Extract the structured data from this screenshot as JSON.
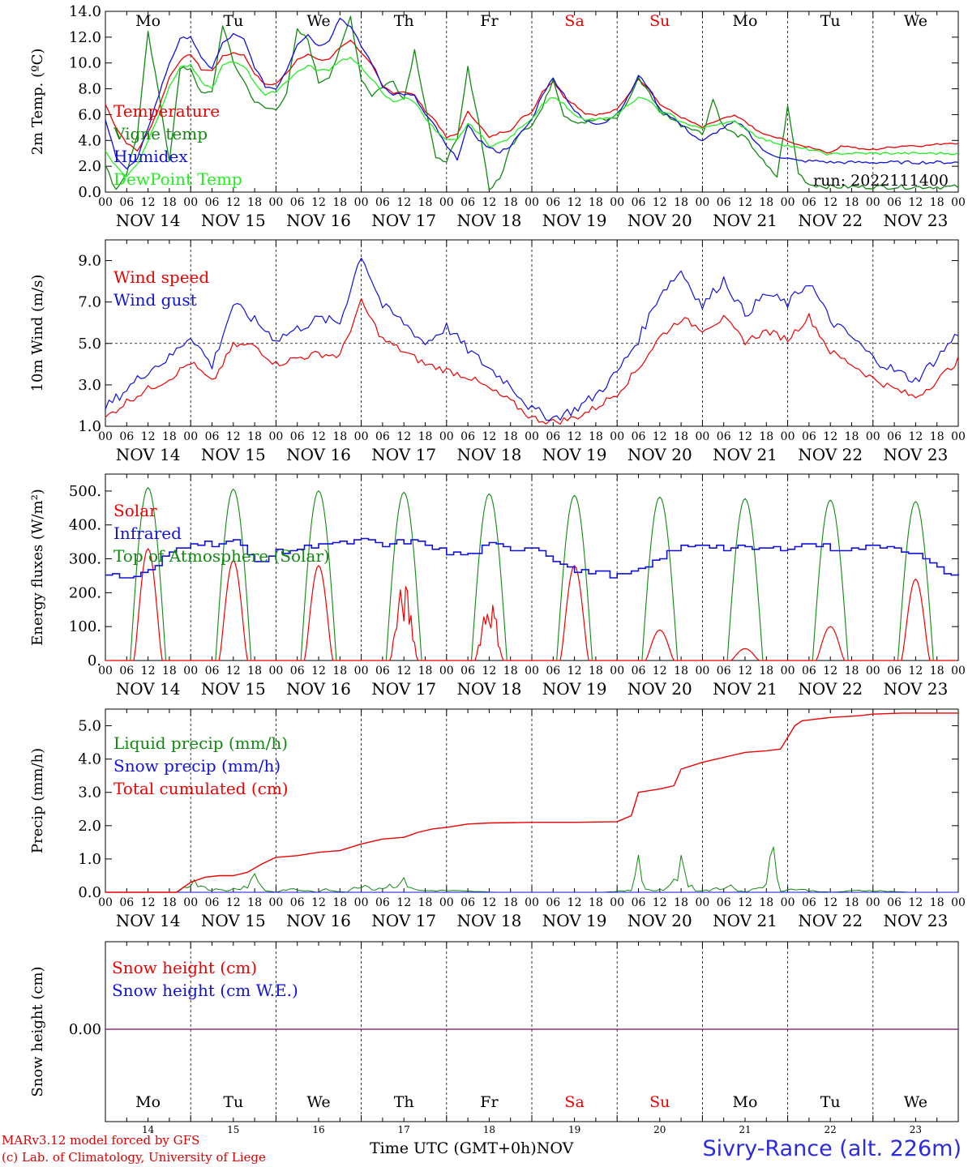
{
  "footer": {
    "model_line": "MARv3.12 model forced by GFS",
    "credit_line": "(c) Lab. of Climatology, University of Liege",
    "x_axis_title": "Time UTC (GMT+0h)",
    "month": "NOV",
    "station": "Sivry-Rance (alt. 226m)"
  },
  "chart_data": [
    {
      "type": "line",
      "ylabel": "2m Temp. (ºC)",
      "ylim": [
        0,
        14
      ],
      "yticks": [
        "0.0",
        "2.0",
        "4.0",
        "6.0",
        "8.0",
        "10.0",
        "12.0",
        "14.0"
      ],
      "run_label": "run: 2022111400",
      "weekday_labels": [
        "Mo",
        "Tu",
        "We",
        "Th",
        "Fr",
        "Sa",
        "Su",
        "Mo",
        "Tu",
        "We"
      ],
      "date_labels": [
        "NOV 14",
        "NOV 15",
        "NOV 16",
        "NOV 17",
        "NOV 18",
        "NOV 19",
        "NOV 20",
        "NOV 21",
        "NOV 22",
        "NOV 23"
      ],
      "hour_ticks": [
        "00",
        "06",
        "12",
        "18"
      ],
      "x": [
        0,
        3,
        6,
        9,
        12,
        15,
        18,
        21,
        24,
        27,
        30,
        33,
        36,
        39,
        42,
        45,
        48,
        51,
        54,
        57,
        60,
        63,
        66,
        69,
        72,
        75,
        78,
        81,
        84,
        87,
        90,
        93,
        96,
        99,
        102,
        105,
        108,
        111,
        114,
        117,
        120,
        123,
        126,
        129,
        132,
        135,
        138,
        141,
        144,
        147,
        150,
        153,
        156,
        159,
        162,
        165,
        168,
        171,
        174,
        177,
        180,
        183,
        186,
        189,
        192,
        195,
        198,
        201,
        204,
        207,
        210,
        213,
        216,
        219,
        222,
        225,
        228,
        231,
        234,
        237,
        240
      ],
      "series": [
        {
          "name": "Temperature",
          "color": "#ee0000",
          "values": [
            6.8,
            5.0,
            3.8,
            3.2,
            4.6,
            6.5,
            8.9,
            10.2,
            10.7,
            9.5,
            9.4,
            10.5,
            10.8,
            10.6,
            9.2,
            8.3,
            8.4,
            9.2,
            10.3,
            10.7,
            10.2,
            10.3,
            11.2,
            11.8,
            10.8,
            9.8,
            8.2,
            7.7,
            7.8,
            7.5,
            6.3,
            5.5,
            4.2,
            4.5,
            6.2,
            5.3,
            4.2,
            4.6,
            4.8,
            5.7,
            6.2,
            7.8,
            8.6,
            7.4,
            6.8,
            6.1,
            6.0,
            6.1,
            6.4,
            7.5,
            8.8,
            8.0,
            6.8,
            6.3,
            5.8,
            5.4,
            5.0,
            5.4,
            5.7,
            5.9,
            5.5,
            4.8,
            4.4,
            4.2,
            4.0,
            3.6,
            3.5,
            3.3,
            3.0,
            3.6,
            3.5,
            3.3,
            3.3,
            3.4,
            3.5,
            3.6,
            3.6,
            3.6,
            3.7,
            3.8,
            3.8
          ]
        },
        {
          "name": "Vigne temp",
          "color": "#118811",
          "values": [
            2.0,
            0.2,
            1.5,
            4.5,
            12.3,
            7.6,
            2.5,
            9.5,
            9.6,
            7.6,
            7.7,
            13.0,
            10.0,
            8.6,
            7.0,
            6.5,
            6.4,
            7.7,
            12.5,
            11.8,
            8.5,
            9.0,
            11.0,
            13.6,
            8.8,
            7.5,
            8.2,
            8.6,
            7.2,
            11.0,
            6.8,
            2.5,
            2.5,
            4.0,
            9.6,
            5.5,
            0.2,
            1.0,
            3.5,
            4.8,
            5.2,
            6.5,
            8.8,
            6.0,
            5.5,
            5.4,
            5.6,
            5.6,
            5.8,
            7.0,
            8.8,
            7.8,
            6.2,
            5.8,
            5.2,
            5.0,
            4.5,
            7.2,
            5.0,
            4.5,
            4.2,
            3.2,
            2.0,
            1.2,
            6.6,
            1.5,
            0.6,
            0.5,
            0.4,
            0.4,
            0.4,
            0.4,
            0.4,
            0.4,
            0.4,
            0.4,
            0.4,
            0.4,
            0.4,
            0.4,
            0.4
          ]
        },
        {
          "name": "Humidex",
          "color": "#1111dd",
          "values": [
            5.5,
            2.8,
            1.8,
            2.5,
            5.0,
            7.5,
            10.0,
            11.8,
            12.1,
            10.3,
            9.6,
            11.5,
            12.2,
            11.8,
            9.7,
            8.2,
            8.0,
            9.5,
            11.5,
            12.2,
            11.3,
            11.8,
            13.5,
            12.8,
            11.3,
            10.0,
            8.2,
            7.6,
            7.6,
            7.4,
            6.0,
            5.0,
            3.5,
            2.6,
            5.1,
            4.1,
            3.4,
            3.1,
            3.6,
            4.6,
            5.6,
            7.6,
            8.8,
            7.6,
            6.3,
            5.5,
            5.3,
            5.5,
            6.1,
            7.3,
            9.0,
            8.1,
            6.4,
            5.9,
            5.2,
            4.5,
            3.9,
            4.5,
            5.0,
            5.4,
            5.0,
            3.9,
            3.0,
            2.8,
            2.6,
            2.4,
            2.4,
            2.4,
            2.3,
            2.3,
            2.3,
            2.3,
            2.3,
            2.3,
            2.3,
            2.3,
            2.3,
            2.3,
            2.3,
            2.3,
            2.3
          ]
        },
        {
          "name": "DewPoint Temp",
          "color": "#22ee22",
          "values": [
            3.2,
            2.0,
            1.2,
            2.2,
            4.0,
            6.0,
            8.1,
            9.7,
            9.8,
            8.5,
            8.0,
            9.8,
            10.1,
            9.8,
            8.5,
            7.5,
            7.8,
            8.6,
            9.3,
            9.8,
            9.4,
            9.5,
            10.2,
            10.4,
            9.6,
            8.8,
            7.6,
            7.0,
            7.3,
            7.0,
            5.8,
            4.7,
            4.0,
            4.0,
            5.3,
            4.6,
            3.6,
            3.8,
            4.2,
            5.1,
            5.7,
            6.8,
            7.4,
            6.8,
            5.9,
            5.6,
            5.6,
            5.7,
            6.0,
            6.8,
            7.3,
            7.1,
            6.2,
            6.0,
            5.4,
            5.2,
            4.9,
            5.2,
            5.4,
            5.4,
            5.0,
            4.4,
            4.0,
            3.8,
            3.6,
            3.4,
            3.3,
            3.1,
            2.9,
            3.0,
            3.0,
            3.0,
            3.0,
            3.0,
            3.0,
            3.0,
            3.0,
            3.0,
            3.0,
            3.0,
            3.0
          ]
        }
      ]
    },
    {
      "type": "line",
      "ylabel": "10m Wind (m/s)",
      "ylim": [
        1,
        10
      ],
      "yticks": [
        "1.0",
        "3.0",
        "5.0",
        "7.0",
        "9.0"
      ],
      "dashed_reference": 5.0,
      "date_labels": [
        "NOV 14",
        "NOV 15",
        "NOV 16",
        "NOV 17",
        "NOV 18",
        "NOV 19",
        "NOV 20",
        "NOV 21",
        "NOV 22",
        "NOV 23"
      ],
      "hour_ticks": [
        "00",
        "06",
        "12",
        "18"
      ],
      "x": [
        0,
        6,
        12,
        18,
        24,
        30,
        36,
        42,
        48,
        54,
        60,
        66,
        72,
        78,
        84,
        90,
        96,
        102,
        108,
        114,
        120,
        126,
        132,
        138,
        144,
        150,
        156,
        162,
        168,
        174,
        180,
        186,
        192,
        198,
        204,
        210,
        216,
        222,
        228,
        234,
        240
      ],
      "series": [
        {
          "name": "Wind speed",
          "color": "#ee0000",
          "values": [
            1.4,
            2.2,
            2.8,
            3.3,
            4.1,
            3.1,
            4.9,
            4.9,
            4.0,
            4.3,
            4.5,
            4.4,
            7.0,
            5.2,
            4.6,
            4.0,
            3.7,
            3.4,
            2.8,
            2.2,
            1.4,
            1.2,
            1.4,
            1.9,
            2.6,
            3.8,
            5.3,
            6.2,
            5.7,
            6.2,
            5.1,
            5.6,
            5.2,
            6.3,
            4.6,
            4.0,
            3.3,
            2.8,
            2.4,
            3.2,
            4.2
          ]
        },
        {
          "name": "Wind gust",
          "color": "#1111dd",
          "values": [
            1.9,
            2.8,
            3.7,
            4.3,
            5.4,
            3.9,
            6.9,
            6.1,
            5.2,
            5.7,
            6.2,
            6.0,
            9.3,
            6.8,
            6.0,
            5.0,
            5.8,
            4.7,
            3.8,
            3.0,
            1.8,
            1.4,
            1.8,
            2.5,
            3.6,
            5.2,
            7.4,
            8.5,
            6.8,
            8.1,
            6.4,
            7.4,
            6.9,
            8.0,
            6.1,
            5.3,
            4.3,
            3.7,
            3.2,
            4.3,
            5.5
          ]
        }
      ]
    },
    {
      "type": "line",
      "ylabel": "Energy fluxes (W/m²)",
      "ylim": [
        0,
        550
      ],
      "yticks": [
        "0.",
        "100.",
        "200.",
        "300.",
        "400.",
        "500."
      ],
      "date_labels": [
        "NOV 14",
        "NOV 15",
        "NOV 16",
        "NOV 17",
        "NOV 18",
        "NOV 19",
        "NOV 20",
        "NOV 21",
        "NOV 22",
        "NOV 23"
      ],
      "hour_ticks": [
        "00",
        "06",
        "12",
        "18"
      ],
      "solar_peaks": [
        330,
        295,
        280,
        235,
        200,
        280,
        90,
        35,
        100,
        240
      ],
      "toa_peak": 510,
      "series": [
        {
          "name": "Solar",
          "color": "#ee0000"
        },
        {
          "name": "Infrared",
          "color": "#1111dd",
          "x": [
            0,
            6,
            12,
            18,
            24,
            30,
            36,
            42,
            48,
            54,
            60,
            66,
            72,
            78,
            84,
            90,
            96,
            102,
            108,
            114,
            120,
            126,
            132,
            138,
            144,
            150,
            156,
            162,
            168,
            174,
            180,
            186,
            192,
            198,
            204,
            210,
            216,
            222,
            228,
            234,
            240
          ],
          "values": [
            252,
            244,
            262,
            320,
            350,
            345,
            352,
            292,
            318,
            328,
            348,
            344,
            352,
            338,
            352,
            344,
            316,
            312,
            342,
            328,
            338,
            300,
            262,
            262,
            250,
            262,
            305,
            335,
            345,
            330,
            330,
            328,
            335,
            345,
            330,
            328,
            338,
            338,
            310,
            268,
            248
          ]
        },
        {
          "name": "Top of Atmosphere (Solar)",
          "color": "#118811"
        }
      ]
    },
    {
      "type": "line",
      "ylabel": "Precip (mm/h)",
      "ylim": [
        0,
        5.5
      ],
      "yticks": [
        "0.0",
        "1.0",
        "2.0",
        "3.0",
        "4.0",
        "5.0"
      ],
      "date_labels": [
        "NOV 14",
        "NOV 15",
        "NOV 16",
        "NOV 17",
        "NOV 18",
        "NOV 19",
        "NOV 20",
        "NOV 21",
        "NOV 22",
        "NOV 23"
      ],
      "hour_ticks": [
        "00",
        "06",
        "12",
        "18"
      ],
      "series": [
        {
          "name": "Liquid precip (mm/h)",
          "color": "#118811",
          "x": [
            0,
            20,
            23,
            26,
            29,
            34,
            40,
            42,
            45,
            48,
            52,
            56,
            60,
            62,
            64,
            68,
            72,
            76,
            84,
            88,
            96,
            110,
            140,
            148,
            150,
            152,
            154,
            158,
            162,
            164,
            166,
            170,
            176,
            178,
            180,
            185,
            188,
            190,
            194,
            198,
            204,
            212,
            216,
            226,
            240
          ],
          "values": [
            0,
            0,
            0.25,
            0.3,
            0.1,
            0.05,
            0.2,
            0.5,
            0.05,
            0,
            0.1,
            0.05,
            0,
            0.1,
            0.05,
            0,
            0.25,
            0.1,
            0.3,
            0.05,
            0.05,
            0,
            0,
            0.05,
            1.2,
            0.1,
            0.05,
            0.1,
            0.8,
            0.3,
            0.05,
            0.05,
            0.2,
            0.05,
            0,
            0.2,
            1.05,
            0.05,
            0.1,
            0.05,
            0,
            0.05,
            0.05,
            0,
            0
          ]
        },
        {
          "name": "Snow precip (mm/h)",
          "color": "#1111dd"
        },
        {
          "name": "Total cumulated (cm)",
          "color": "#ee0000",
          "x": [
            0,
            20,
            24,
            28,
            32,
            36,
            40,
            44,
            48,
            54,
            60,
            66,
            72,
            78,
            84,
            88,
            92,
            96,
            102,
            108,
            120,
            132,
            144,
            148,
            150,
            156,
            160,
            162,
            168,
            172,
            176,
            180,
            186,
            190,
            194,
            196,
            200,
            204,
            212,
            216,
            224,
            240
          ],
          "values": [
            0,
            0,
            0.3,
            0.45,
            0.5,
            0.5,
            0.6,
            0.85,
            1.05,
            1.1,
            1.2,
            1.25,
            1.45,
            1.6,
            1.65,
            1.8,
            1.9,
            1.95,
            2.05,
            2.08,
            2.1,
            2.1,
            2.12,
            2.3,
            3.0,
            3.1,
            3.2,
            3.7,
            3.9,
            4.0,
            4.1,
            4.2,
            4.25,
            4.3,
            5.0,
            5.15,
            5.2,
            5.25,
            5.3,
            5.35,
            5.38,
            5.38
          ]
        }
      ]
    },
    {
      "type": "line",
      "ylabel": "Snow height (cm)",
      "ytick": "0.00",
      "weekday_labels": [
        "Mo",
        "Tu",
        "We",
        "Th",
        "Fr",
        "Sa",
        "Su",
        "Mo",
        "Tu",
        "We"
      ],
      "day_numbers": [
        "14",
        "15",
        "16",
        "17",
        "18",
        "19",
        "20",
        "21",
        "22",
        "23"
      ],
      "series": [
        {
          "name": "Snow height (cm)",
          "color": "#ee0000",
          "values": [
            0,
            0
          ]
        },
        {
          "name": "Snow height (cm W.E.)",
          "color": "#1111dd",
          "values": [
            0,
            0
          ]
        }
      ]
    }
  ]
}
